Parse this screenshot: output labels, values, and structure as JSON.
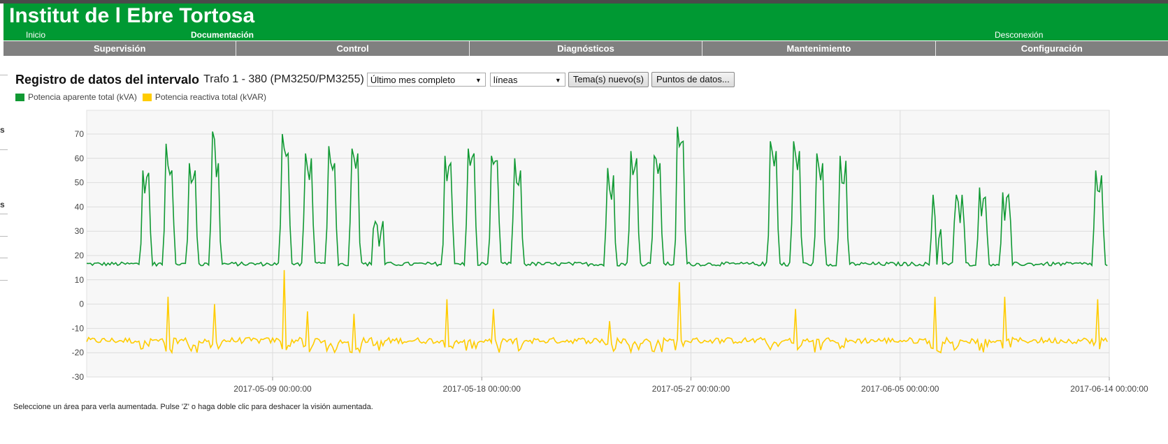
{
  "header": {
    "title": "Institut de l Ebre Tortosa",
    "links": {
      "home": "Inicio",
      "docs": "Documentación",
      "logout": "Desconexión"
    },
    "nav": [
      "Supervisión",
      "Control",
      "Diagnósticos",
      "Mantenimiento",
      "Configuración"
    ]
  },
  "report": {
    "title": "Registro de datos del intervalo",
    "device": "Trafo 1 - 380 (PM3250/PM3255)",
    "period": "Último mes completo",
    "style": "líneas",
    "new_topic": "Tema(s) nuevo(s)",
    "datapoints": "Puntos de datos..."
  },
  "hint": "Seleccione un área para verla aumentada. Pulse 'Z' o haga doble clic para deshacer la visión aumentada.",
  "colors": {
    "header": "#009933",
    "nav": "#808080",
    "series1": "#109933",
    "series2": "#ffcc00"
  },
  "sidebar_fragments": [
    "s",
    "s"
  ],
  "chart_data": {
    "type": "line",
    "ylim": [
      -30,
      75
    ],
    "yticks": [
      "70",
      "60",
      "50",
      "40",
      "30",
      "20",
      "10",
      "0",
      "-10",
      "-20",
      "-30"
    ],
    "xticks": [
      "2017-05-09 00:00:00",
      "2017-05-18 00:00:00",
      "2017-05-27 00:00:00",
      "2017-06-05 00:00:00",
      "2017-06-14 00:00:00"
    ],
    "xlim": [
      "2017-05-01",
      "2017-06-14"
    ],
    "grid": true,
    "legend_position": "top-left",
    "series": [
      {
        "name": "Potencia aparente total (kVA)",
        "color": "#109933",
        "baseline": 16.5,
        "daily_peaks": [
          [
            "2017-05-02",
            0,
            0
          ],
          [
            "2017-05-03",
            55,
            54
          ],
          [
            "2017-05-04",
            66,
            55
          ],
          [
            "2017-05-05",
            58,
            55
          ],
          [
            "2017-05-06",
            71,
            58
          ],
          [
            "2017-05-07",
            0,
            0
          ],
          [
            "2017-05-08",
            0,
            0
          ],
          [
            "2017-05-09",
            70,
            62
          ],
          [
            "2017-05-10",
            62,
            60
          ],
          [
            "2017-05-11",
            65,
            58
          ],
          [
            "2017-05-12",
            64,
            62
          ],
          [
            "2017-05-13",
            34,
            30
          ],
          [
            "2017-05-14",
            0,
            0
          ],
          [
            "2017-05-15",
            0,
            0
          ],
          [
            "2017-05-16",
            61,
            58
          ],
          [
            "2017-05-17",
            64,
            62
          ],
          [
            "2017-05-18",
            61,
            59
          ],
          [
            "2017-05-19",
            60,
            55
          ],
          [
            "2017-05-20",
            0,
            0
          ],
          [
            "2017-05-21",
            0,
            0
          ],
          [
            "2017-05-22",
            0,
            0
          ],
          [
            "2017-05-23",
            56,
            53
          ],
          [
            "2017-05-24",
            63,
            60
          ],
          [
            "2017-05-25",
            61,
            58
          ],
          [
            "2017-05-26",
            73,
            67
          ],
          [
            "2017-05-27",
            0,
            0
          ],
          [
            "2017-05-28",
            0,
            0
          ],
          [
            "2017-05-29",
            0,
            0
          ],
          [
            "2017-05-30",
            67,
            63
          ],
          [
            "2017-05-31",
            67,
            63
          ],
          [
            "2017-06-01",
            62,
            58
          ],
          [
            "2017-06-02",
            61,
            59
          ],
          [
            "2017-06-03",
            0,
            0
          ],
          [
            "2017-06-04",
            0,
            0
          ],
          [
            "2017-06-05",
            0,
            0
          ],
          [
            "2017-06-06",
            45,
            27
          ],
          [
            "2017-06-07",
            45,
            45
          ],
          [
            "2017-06-08",
            48,
            44
          ],
          [
            "2017-06-09",
            46,
            45
          ],
          [
            "2017-06-10",
            0,
            0
          ],
          [
            "2017-06-11",
            0,
            0
          ],
          [
            "2017-06-12",
            0,
            0
          ],
          [
            "2017-06-13",
            55,
            53
          ]
        ]
      },
      {
        "name": "Potencia reactiva total (kVAR)",
        "color": "#ffcc00",
        "baseline": -15,
        "active_level": -17,
        "spikes": [
          [
            "2017-05-04",
            3
          ],
          [
            "2017-05-06",
            0
          ],
          [
            "2017-05-09",
            14
          ],
          [
            "2017-05-10",
            -3
          ],
          [
            "2017-05-12",
            -4
          ],
          [
            "2017-05-16",
            2
          ],
          [
            "2017-05-18",
            -2
          ],
          [
            "2017-05-23",
            -7
          ],
          [
            "2017-05-26",
            9
          ],
          [
            "2017-05-31",
            -2
          ],
          [
            "2017-06-05",
            -2
          ],
          [
            "2017-06-06",
            3
          ],
          [
            "2017-06-09",
            3
          ],
          [
            "2017-06-13",
            2
          ]
        ]
      }
    ]
  }
}
